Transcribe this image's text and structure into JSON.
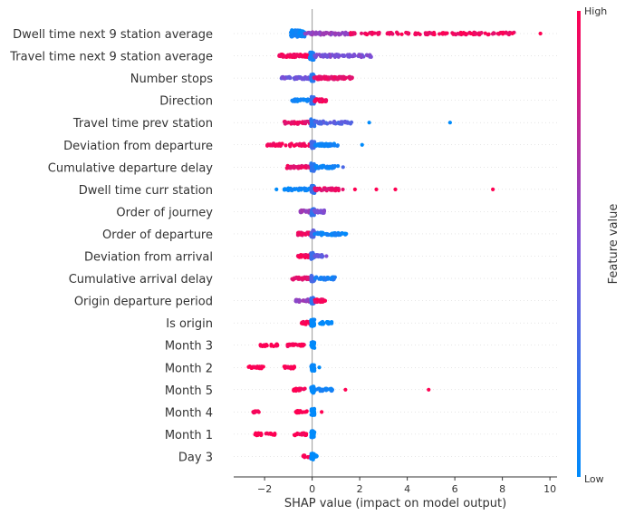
{
  "chart_data": {
    "type": "scatter",
    "subtype": "shap-beeswarm",
    "title": "",
    "xlabel": "SHAP value (impact on model output)",
    "ylabel": "",
    "xlim": [
      -3.3,
      10.3
    ],
    "xticks": [
      -2,
      0,
      2,
      4,
      6,
      8,
      10
    ],
    "zero_line": true,
    "grid": false,
    "colorbar": {
      "label": "Feature value",
      "high_label": "High",
      "low_label": "Low",
      "low_color": "#008bfb",
      "high_color": "#ff0052"
    },
    "features": [
      {
        "name": "Dwell time next 9 station average",
        "clusters": [
          {
            "min": -0.9,
            "max": -0.3,
            "n": 70,
            "spread": 0.32,
            "value": 0.05
          },
          {
            "min": -0.3,
            "max": 1.6,
            "n": 60,
            "spread": 0.12,
            "value": 0.6
          },
          {
            "min": 1.6,
            "max": 8.5,
            "n": 140,
            "spread": 0.1,
            "value": 0.95
          }
        ],
        "outliers": [
          {
            "x": 9.6,
            "value": 1.0
          }
        ]
      },
      {
        "name": "Travel time next 9 station average",
        "clusters": [
          {
            "min": -1.4,
            "max": -0.1,
            "n": 55,
            "spread": 0.12,
            "value": 0.97
          },
          {
            "min": -0.1,
            "max": 0.1,
            "n": 35,
            "spread": 0.38,
            "value": 0.1
          },
          {
            "min": 0.1,
            "max": 2.5,
            "n": 70,
            "spread": 0.12,
            "value": 0.5
          }
        ],
        "outliers": []
      },
      {
        "name": "Number stops",
        "clusters": [
          {
            "min": -1.3,
            "max": -0.05,
            "n": 45,
            "spread": 0.1,
            "value": 0.45
          },
          {
            "min": -0.05,
            "max": 0.08,
            "n": 30,
            "spread": 0.35,
            "value": 0.15
          },
          {
            "min": 0.08,
            "max": 1.7,
            "n": 70,
            "spread": 0.12,
            "value": 0.9
          }
        ],
        "outliers": []
      },
      {
        "name": "Direction",
        "clusters": [
          {
            "min": -0.85,
            "max": -0.05,
            "n": 35,
            "spread": 0.1,
            "value": 0.05
          },
          {
            "min": -0.05,
            "max": 0.1,
            "n": 30,
            "spread": 0.32,
            "value": 0.2
          },
          {
            "min": 0.1,
            "max": 0.6,
            "n": 30,
            "spread": 0.12,
            "value": 0.97
          }
        ],
        "outliers": []
      },
      {
        "name": "Travel time prev station",
        "clusters": [
          {
            "min": -1.2,
            "max": -0.05,
            "n": 35,
            "spread": 0.12,
            "value": 0.9
          },
          {
            "min": -0.05,
            "max": 0.1,
            "n": 30,
            "spread": 0.35,
            "value": 0.2
          },
          {
            "min": 0.1,
            "max": 1.7,
            "n": 40,
            "spread": 0.12,
            "value": 0.35
          }
        ],
        "outliers": [
          {
            "x": 2.4,
            "value": 0.0
          },
          {
            "x": 5.8,
            "value": 0.0
          }
        ]
      },
      {
        "name": "Deviation from departure",
        "clusters": [
          {
            "min": -1.9,
            "max": -0.05,
            "n": 50,
            "spread": 0.12,
            "value": 0.97
          },
          {
            "min": -0.05,
            "max": 0.1,
            "n": 30,
            "spread": 0.32,
            "value": 0.3
          },
          {
            "min": 0.1,
            "max": 1.1,
            "n": 45,
            "spread": 0.12,
            "value": 0.05
          }
        ],
        "outliers": [
          {
            "x": 2.1,
            "value": 0.0
          }
        ]
      },
      {
        "name": "Cumulative departure delay",
        "clusters": [
          {
            "min": -1.1,
            "max": -0.05,
            "n": 40,
            "spread": 0.12,
            "value": 0.92
          },
          {
            "min": -0.05,
            "max": 0.1,
            "n": 30,
            "spread": 0.35,
            "value": 0.2
          },
          {
            "min": 0.1,
            "max": 1.1,
            "n": 45,
            "spread": 0.12,
            "value": 0.05
          }
        ],
        "outliers": [
          {
            "x": 1.3,
            "value": 0.3
          }
        ]
      },
      {
        "name": "Dwell time curr station",
        "clusters": [
          {
            "min": -1.2,
            "max": -0.05,
            "n": 35,
            "spread": 0.1,
            "value": 0.03
          },
          {
            "min": -0.05,
            "max": 0.1,
            "n": 30,
            "spread": 0.35,
            "value": 0.2
          },
          {
            "min": 0.1,
            "max": 1.3,
            "n": 45,
            "spread": 0.12,
            "value": 0.9
          }
        ],
        "outliers": [
          {
            "x": -1.5,
            "value": 0.0
          },
          {
            "x": 1.8,
            "value": 1.0
          },
          {
            "x": 2.7,
            "value": 1.0
          },
          {
            "x": 3.5,
            "value": 1.0
          },
          {
            "x": 7.6,
            "value": 1.0
          }
        ]
      },
      {
        "name": "Order of journey",
        "clusters": [
          {
            "min": -0.5,
            "max": -0.05,
            "n": 30,
            "spread": 0.12,
            "value": 0.6
          },
          {
            "min": -0.05,
            "max": 0.1,
            "n": 30,
            "spread": 0.33,
            "value": 0.2
          },
          {
            "min": 0.1,
            "max": 0.55,
            "n": 30,
            "spread": 0.12,
            "value": 0.5
          }
        ],
        "outliers": []
      },
      {
        "name": "Order of departure",
        "clusters": [
          {
            "min": -0.6,
            "max": -0.05,
            "n": 35,
            "spread": 0.12,
            "value": 0.92
          },
          {
            "min": -0.05,
            "max": 0.1,
            "n": 30,
            "spread": 0.33,
            "value": 0.35
          },
          {
            "min": 0.1,
            "max": 1.6,
            "n": 50,
            "spread": 0.12,
            "value": 0.05
          }
        ],
        "outliers": []
      },
      {
        "name": "Deviation from arrival",
        "clusters": [
          {
            "min": -0.6,
            "max": -0.05,
            "n": 30,
            "spread": 0.12,
            "value": 0.95
          },
          {
            "min": -0.05,
            "max": 0.1,
            "n": 25,
            "spread": 0.3,
            "value": 0.25
          },
          {
            "min": 0.1,
            "max": 0.45,
            "n": 20,
            "spread": 0.12,
            "value": 0.4
          }
        ],
        "outliers": [
          {
            "x": 0.6,
            "value": 0.5
          }
        ]
      },
      {
        "name": "Cumulative arrival delay",
        "clusters": [
          {
            "min": -0.9,
            "max": -0.05,
            "n": 30,
            "spread": 0.12,
            "value": 0.9
          },
          {
            "min": -0.05,
            "max": 0.1,
            "n": 25,
            "spread": 0.3,
            "value": 0.3
          },
          {
            "min": 0.1,
            "max": 1.0,
            "n": 30,
            "spread": 0.12,
            "value": 0.1
          }
        ],
        "outliers": []
      },
      {
        "name": "Origin departure period",
        "clusters": [
          {
            "min": -0.7,
            "max": -0.05,
            "n": 30,
            "spread": 0.12,
            "value": 0.6
          },
          {
            "min": -0.05,
            "max": 0.1,
            "n": 25,
            "spread": 0.3,
            "value": 0.2
          },
          {
            "min": 0.1,
            "max": 0.55,
            "n": 25,
            "spread": 0.12,
            "value": 0.95
          }
        ],
        "outliers": []
      },
      {
        "name": "Is origin",
        "clusters": [
          {
            "min": -0.45,
            "max": -0.05,
            "n": 20,
            "spread": 0.12,
            "value": 0.97
          },
          {
            "min": -0.05,
            "max": 0.1,
            "n": 25,
            "spread": 0.3,
            "value": 0.0
          },
          {
            "min": 0.3,
            "max": 0.85,
            "n": 25,
            "spread": 0.1,
            "value": 0.0
          }
        ],
        "outliers": []
      },
      {
        "name": "Month 3",
        "clusters": [
          {
            "min": -2.2,
            "max": -1.4,
            "n": 25,
            "spread": 0.1,
            "value": 1.0
          },
          {
            "min": -1.1,
            "max": -0.3,
            "n": 25,
            "spread": 0.1,
            "value": 1.0
          },
          {
            "min": -0.05,
            "max": 0.1,
            "n": 30,
            "spread": 0.3,
            "value": 0.0
          }
        ],
        "outliers": []
      },
      {
        "name": "Month 2",
        "clusters": [
          {
            "min": -2.7,
            "max": -2.0,
            "n": 25,
            "spread": 0.1,
            "value": 1.0
          },
          {
            "min": -1.2,
            "max": -0.7,
            "n": 20,
            "spread": 0.1,
            "value": 1.0
          },
          {
            "min": -0.05,
            "max": 0.1,
            "n": 30,
            "spread": 0.3,
            "value": 0.0
          }
        ],
        "outliers": [
          {
            "x": 0.3,
            "value": 0.0
          }
        ]
      },
      {
        "name": "Month 5",
        "clusters": [
          {
            "min": -0.8,
            "max": -0.3,
            "n": 20,
            "spread": 0.1,
            "value": 1.0
          },
          {
            "min": -0.05,
            "max": 0.1,
            "n": 30,
            "spread": 0.3,
            "value": 0.0
          },
          {
            "min": 0.1,
            "max": 0.9,
            "n": 20,
            "spread": 0.12,
            "value": 0.05
          }
        ],
        "outliers": [
          {
            "x": 1.4,
            "value": 1.0
          },
          {
            "x": 4.9,
            "value": 1.0
          }
        ]
      },
      {
        "name": "Month 4",
        "clusters": [
          {
            "min": -2.5,
            "max": -2.2,
            "n": 12,
            "spread": 0.1,
            "value": 1.0
          },
          {
            "min": -0.7,
            "max": -0.2,
            "n": 20,
            "spread": 0.1,
            "value": 1.0
          },
          {
            "min": -0.05,
            "max": 0.1,
            "n": 30,
            "spread": 0.3,
            "value": 0.0
          }
        ],
        "outliers": [
          {
            "x": 0.4,
            "value": 1.0
          }
        ]
      },
      {
        "name": "Month 1",
        "clusters": [
          {
            "min": -2.4,
            "max": -1.5,
            "n": 25,
            "spread": 0.1,
            "value": 1.0
          },
          {
            "min": -0.8,
            "max": -0.2,
            "n": 20,
            "spread": 0.1,
            "value": 1.0
          },
          {
            "min": -0.05,
            "max": 0.1,
            "n": 30,
            "spread": 0.3,
            "value": 0.0
          }
        ],
        "outliers": []
      },
      {
        "name": "Day 3",
        "clusters": [
          {
            "min": -0.4,
            "max": -0.05,
            "n": 12,
            "spread": 0.1,
            "value": 1.0
          },
          {
            "min": -0.05,
            "max": 0.1,
            "n": 20,
            "spread": 0.28,
            "value": 0.0
          },
          {
            "min": 0.05,
            "max": 0.2,
            "n": 8,
            "spread": 0.1,
            "value": 0.0
          }
        ],
        "outliers": []
      }
    ]
  }
}
